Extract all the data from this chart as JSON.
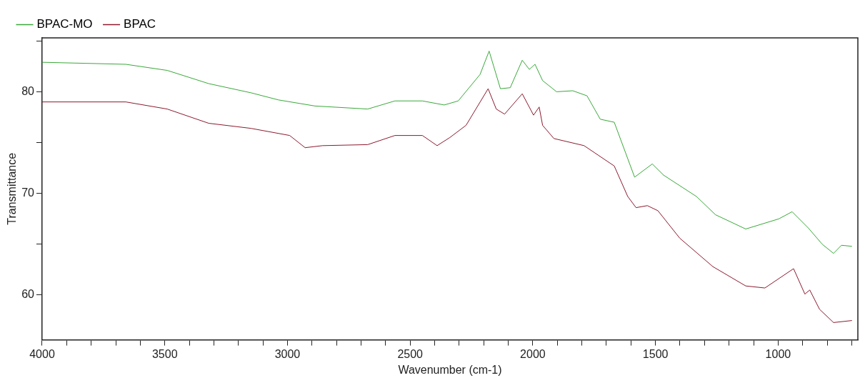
{
  "chart_data": {
    "type": "line",
    "xlabel": "Wavenumber (cm-1)",
    "ylabel": "Transmittance",
    "legend": "top",
    "grid": false,
    "marker": "none",
    "line_style": "solid",
    "xlim": [
      4000,
      675
    ],
    "ylim": [
      55.6,
      85.3
    ],
    "xticks": [
      4000,
      {
        "value": 3900,
        "label": null
      },
      {
        "value": 3800,
        "label": null
      },
      {
        "value": 3700,
        "label": null
      },
      {
        "value": 3600,
        "label": null
      },
      3500,
      {
        "value": 3400,
        "label": null
      },
      {
        "value": 3300,
        "label": null
      },
      {
        "value": 3200,
        "label": null
      },
      {
        "value": 3100,
        "label": null
      },
      3000,
      {
        "value": 2900,
        "label": null
      },
      {
        "value": 2800,
        "label": null
      },
      {
        "value": 2700,
        "label": null
      },
      {
        "value": 2600,
        "label": null
      },
      2500,
      {
        "value": 2400,
        "label": null
      },
      {
        "value": 2300,
        "label": null
      },
      {
        "value": 2200,
        "label": null
      },
      {
        "value": 2100,
        "label": null
      },
      2000,
      {
        "value": 1900,
        "label": null
      },
      {
        "value": 1800,
        "label": null
      },
      {
        "value": 1700,
        "label": null
      },
      {
        "value": 1600,
        "label": null
      },
      1500,
      {
        "value": 1400,
        "label": null
      },
      {
        "value": 1300,
        "label": null
      },
      {
        "value": 1200,
        "label": null
      },
      {
        "value": 1100,
        "label": null
      },
      1000,
      {
        "value": 900,
        "label": null
      },
      {
        "value": 800,
        "label": null
      },
      {
        "value": 700,
        "label": null
      }
    ],
    "yticks": [
      60,
      {
        "value": 65,
        "label": null
      },
      70,
      {
        "value": 75,
        "label": null
      },
      80,
      {
        "value": 85,
        "label": null
      }
    ],
    "series": [
      {
        "name": "BPAC-MO",
        "color": "#3aa83a",
        "x": [
          4000,
          3659,
          3490,
          3321,
          3149,
          3037,
          2888,
          2673,
          2562,
          2450,
          2361,
          2304,
          2215,
          2178,
          2132,
          2092,
          2043,
          2014,
          1991,
          1960,
          1903,
          1837,
          1779,
          1725,
          1668,
          1585,
          1513,
          1467,
          1333,
          1255,
          1132,
          997,
          943,
          877,
          820,
          774,
          742,
          699
        ],
        "values": [
          82.9,
          82.7,
          82.1,
          80.8,
          79.9,
          79.2,
          78.6,
          78.3,
          79.1,
          79.1,
          78.7,
          79.1,
          81.7,
          84.0,
          80.3,
          80.4,
          83.1,
          82.2,
          82.7,
          81.1,
          80.0,
          80.1,
          79.6,
          77.3,
          77.0,
          71.6,
          72.9,
          71.8,
          69.7,
          67.9,
          66.5,
          67.5,
          68.2,
          66.6,
          65.0,
          64.1,
          64.9,
          64.8
        ]
      },
      {
        "name": "BPAC",
        "color": "#8b1a2e",
        "x": [
          4000,
          3659,
          3490,
          3321,
          3149,
          2991,
          2928,
          2857,
          2673,
          2562,
          2450,
          2390,
          2338,
          2272,
          2182,
          2149,
          2115,
          2043,
          1997,
          1974,
          1960,
          1914,
          1791,
          1668,
          1613,
          1579,
          1533,
          1490,
          1401,
          1266,
          1132,
          1054,
          937,
          891,
          871,
          831,
          774,
          699
        ],
        "values": [
          79.0,
          79.0,
          78.3,
          76.9,
          76.4,
          75.7,
          74.5,
          74.7,
          74.8,
          75.7,
          75.7,
          74.7,
          75.5,
          76.7,
          80.3,
          78.3,
          77.8,
          79.8,
          77.7,
          78.5,
          76.7,
          75.4,
          74.7,
          72.7,
          69.7,
          68.6,
          68.8,
          68.3,
          65.6,
          62.8,
          60.9,
          60.7,
          62.6,
          60.1,
          60.5,
          58.6,
          57.3,
          57.5
        ]
      }
    ]
  }
}
